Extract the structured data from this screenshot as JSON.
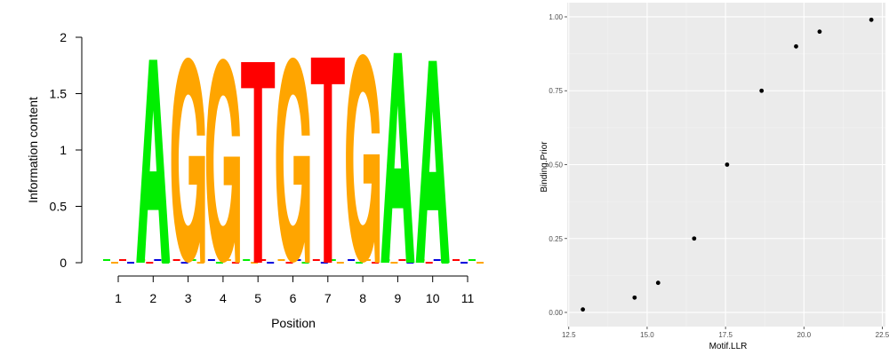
{
  "chart_data": [
    {
      "type": "sequence-logo",
      "ylabel": "Information content",
      "xlabel": "Position",
      "ylim": [
        0,
        2
      ],
      "yticks": [
        "0",
        "0.5",
        "1",
        "1.5",
        "2"
      ],
      "positions": [
        "1",
        "2",
        "3",
        "4",
        "5",
        "6",
        "7",
        "8",
        "9",
        "10",
        "11"
      ],
      "letters": [
        "",
        "A",
        "G",
        "G",
        "T",
        "G",
        "T",
        "G",
        "A",
        "A",
        ""
      ],
      "info_content": [
        0.04,
        1.8,
        1.82,
        1.81,
        1.78,
        1.82,
        1.82,
        1.85,
        1.86,
        1.79,
        0.04
      ],
      "colors": {
        "A": "#00ee00",
        "C": "#0000dd",
        "G": "#ffa500",
        "T": "#ff0000"
      }
    },
    {
      "type": "scatter",
      "xlabel": "Motif.LLR",
      "ylabel": "Binding.Prior",
      "xlim": [
        12.5,
        22.5
      ],
      "ylim": [
        0,
        1
      ],
      "xticks": [
        "12.5",
        "15.0",
        "17.5",
        "20.0",
        "22.5"
      ],
      "yticks": [
        "0.00",
        "0.25",
        "0.50",
        "0.75",
        "1.00"
      ],
      "x": [
        12.95,
        14.6,
        15.35,
        16.5,
        17.55,
        18.65,
        19.75,
        20.5,
        22.15
      ],
      "y": [
        0.01,
        0.05,
        0.1,
        0.25,
        0.5,
        0.75,
        0.9,
        0.95,
        0.99
      ],
      "grid": true,
      "panel_background": "#ebebeb",
      "point_color": "#000000"
    }
  ]
}
